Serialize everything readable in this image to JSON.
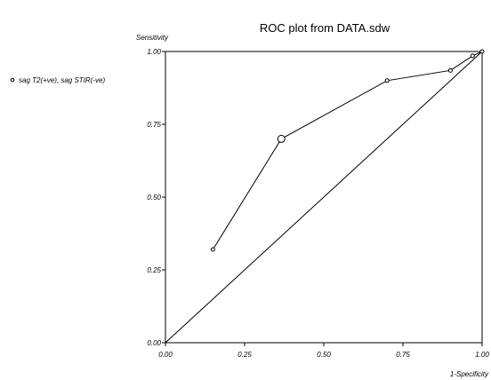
{
  "chart_data": {
    "type": "scatter",
    "title": "ROC plot from DATA.sdw",
    "xlabel": "1-Specificity",
    "ylabel": "Sensitivity",
    "xlim": [
      0,
      1
    ],
    "ylim": [
      0,
      1
    ],
    "x_ticks": [
      "0.00",
      "0.25",
      "0.50",
      "0.75",
      "1.00"
    ],
    "y_ticks": [
      "0.00",
      "0.25",
      "0.50",
      "0.75",
      "1.00"
    ],
    "grid": false,
    "legend_position": "left",
    "series": [
      {
        "name": "sag T2(+ve), sag STIR(-ve)",
        "color": "#000000",
        "points": [
          {
            "x": 0.15,
            "y": 0.32
          },
          {
            "x": 0.366,
            "y": 0.7
          },
          {
            "x": 0.7,
            "y": 0.9
          },
          {
            "x": 0.9,
            "y": 0.935
          },
          {
            "x": 0.97,
            "y": 0.985
          },
          {
            "x": 1.0,
            "y": 1.0
          }
        ],
        "highlight_index": 1
      }
    ],
    "reference_line": {
      "from": [
        0,
        0
      ],
      "to": [
        1,
        1
      ],
      "color": "#000000"
    }
  }
}
